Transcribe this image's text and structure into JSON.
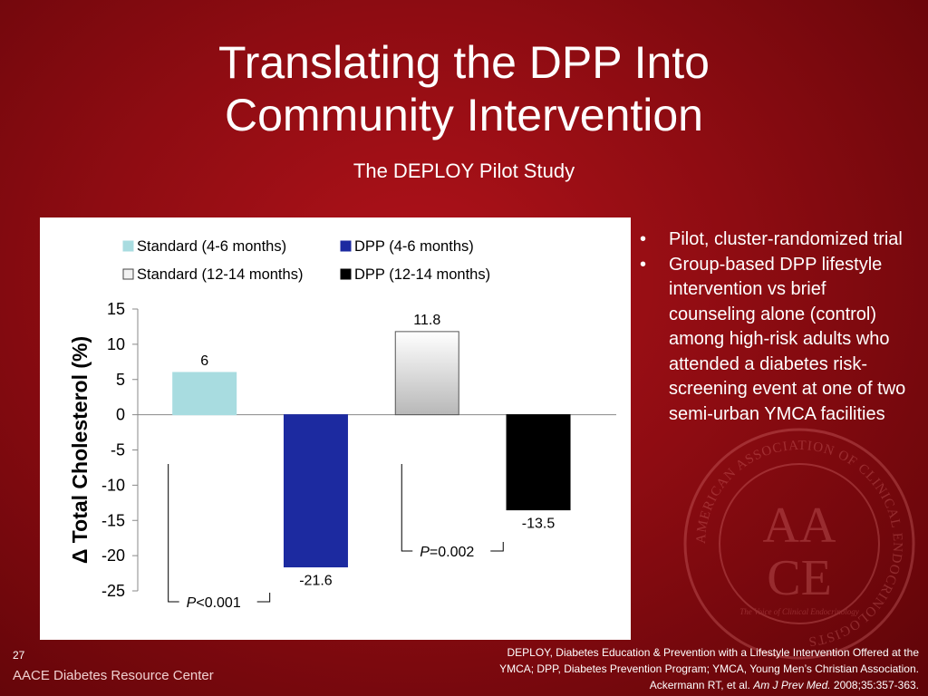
{
  "slide": {
    "title_line1": "Translating the DPP Into",
    "title_line2": "Community Intervention",
    "subtitle": "The DEPLOY Pilot Study",
    "number": "27",
    "brand": "AACE Diabetes Resource Center"
  },
  "bullets": [
    {
      "marker": "•",
      "text": "Pilot, cluster-randomized trial"
    },
    {
      "marker": "•",
      "text": "Group-based DPP lifestyle intervention vs brief counseling alone (control) among high-risk adults who attended a diabetes risk-screening event at one of two semi-urban YMCA facilities"
    }
  ],
  "citation": {
    "line1": "DEPLOY, Diabetes Education & Prevention with a Lifestyle Intervention Offered at the",
    "line2": "YMCA; DPP, Diabetes Prevention Program; YMCA, Young Men’s Christian Association.",
    "line3_prefix": "Ackermann RT, et al. ",
    "line3_journal": "Am J Prev Med.",
    "line3_suffix": " 2008;35:357-363."
  },
  "seal": {
    "ring_text": "AMERICAN ASSOCIATION OF CLINICAL ENDOCRINOLOGISTS",
    "top": "AA",
    "bottom": "CE",
    "motto": "The Voice of Clinical Endocrinology"
  },
  "chart_data": {
    "type": "bar",
    "ylabel": "Δ Total Cholesterol (%)",
    "ylim": [
      -25,
      15
    ],
    "yticks": [
      "15",
      "10",
      "5",
      "0",
      "-5",
      "-10",
      "-15",
      "-20",
      "-25"
    ],
    "legend_position": "top",
    "series": [
      {
        "name": "Standard (4-6 months)",
        "value": 6,
        "label": "6",
        "color": "#a8dce0"
      },
      {
        "name": "DPP (4-6 months)",
        "value": -21.6,
        "label": "-21.6",
        "color": "#1c2aa0"
      },
      {
        "name": "Standard (12-14 months)",
        "value": 11.8,
        "label": "11.8",
        "color": "#e2e2e2"
      },
      {
        "name": "DPP (12-14 months)",
        "value": -13.5,
        "label": "-13.5",
        "color": "#000000"
      }
    ],
    "annotations": [
      {
        "p": "P",
        "rest": "<0.001"
      },
      {
        "p": "P",
        "rest": "=0.002"
      }
    ]
  }
}
